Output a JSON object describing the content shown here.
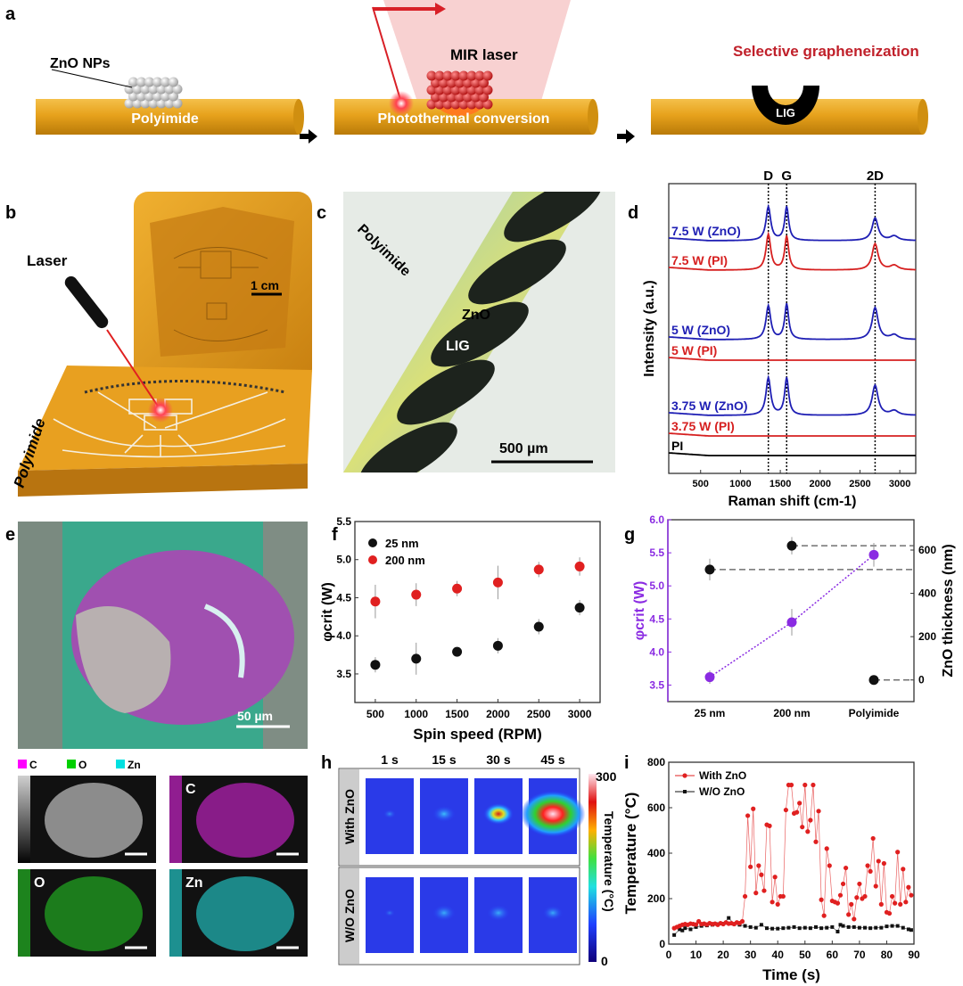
{
  "panel_labels": {
    "a": "a",
    "b": "b",
    "c": "c",
    "d": "d",
    "e": "e",
    "f": "f",
    "g": "g",
    "h": "h",
    "i": "i"
  },
  "panel_a": {
    "zno_nps": "ZnO NPs",
    "polyimide": "Polyimide",
    "mir_laser": "MIR laser",
    "photothermal": "Photothermal conversion",
    "selective": "Selective grapheneization",
    "lig": "LIG",
    "colors": {
      "substrate": "#e7a21c",
      "laser": "#d81f26",
      "title_red": "#c0202a"
    }
  },
  "panel_b": {
    "laser": "Laser",
    "scale": "1 cm",
    "polyimide": "Polyimide"
  },
  "panel_c": {
    "polyimide": "Polyimide",
    "zno": "ZnO",
    "lig": "LIG",
    "scale": "500 µm"
  },
  "panel_e": {
    "scale": "50 µm",
    "legend": [
      "C",
      "O",
      "Zn"
    ],
    "legend_colors": [
      "#ff00ff",
      "#00d000",
      "#00e0e0"
    ],
    "maps": [
      "C",
      "O",
      "Zn"
    ]
  },
  "panel_h": {
    "times": [
      "1 s",
      "15 s",
      "30 s",
      "45 s"
    ],
    "rows": [
      "With ZnO",
      "W/O ZnO"
    ],
    "colorbar": {
      "label": "Temperature (°C)",
      "max": "300",
      "min": "0"
    }
  },
  "chart_data": [
    {
      "id": "d",
      "type": "line",
      "xlabel": "Raman shift (cm-1)",
      "ylabel": "Intensity (a.u.)",
      "xlim": [
        100,
        3200
      ],
      "xticks": [
        500,
        1000,
        1500,
        2000,
        2500,
        3000
      ],
      "peak_markers": [
        {
          "label": "D",
          "x": 1350
        },
        {
          "label": "G",
          "x": 1580
        },
        {
          "label": "2D",
          "x": 2690
        }
      ],
      "series": [
        {
          "name": "7.5 W (ZnO)",
          "color": "#1f1fb4",
          "peaks": [
            0.9,
            0.9,
            0.6
          ]
        },
        {
          "name": "7.5 W (PI)",
          "color": "#d62020",
          "peaks": [
            0.95,
            0.9,
            0.7
          ]
        },
        {
          "name": "5 W (ZnO)",
          "color": "#1f1fb4",
          "peaks": [
            0.9,
            0.95,
            0.85
          ]
        },
        {
          "name": "5 W (PI)",
          "color": "#d62020",
          "peaks": [
            0,
            0,
            0
          ]
        },
        {
          "name": "3.75 W (ZnO)",
          "color": "#1f1fb4",
          "peaks": [
            1.0,
            1.0,
            0.8
          ]
        },
        {
          "name": "3.75 W (PI)",
          "color": "#d62020",
          "peaks": [
            0,
            0,
            0
          ]
        },
        {
          "name": "PI",
          "color": "#000000",
          "peaks": [
            0,
            0,
            0
          ]
        }
      ]
    },
    {
      "id": "f",
      "type": "scatter",
      "xlabel": "Spin speed (RPM)",
      "ylabel": "φcrit (W)",
      "xlim": [
        250,
        3250
      ],
      "ylim": [
        3.125,
        5.5
      ],
      "x": [
        500,
        1000,
        1500,
        2000,
        2500,
        3000
      ],
      "yticks": [
        3.5,
        4.0,
        4.5,
        5.0,
        5.5
      ],
      "legend": "top-left",
      "series": [
        {
          "name": "25 nm",
          "color": "#111111",
          "values": [
            3.62,
            3.7,
            3.79,
            3.87,
            4.12,
            4.37
          ],
          "errors": [
            0.1,
            0.21,
            0.03,
            0.1,
            0.1,
            0.1
          ]
        },
        {
          "name": "200 nm",
          "color": "#e02020",
          "values": [
            4.45,
            4.54,
            4.62,
            4.7,
            4.87,
            4.91
          ],
          "errors": [
            0.22,
            0.15,
            0.1,
            0.22,
            0.1,
            0.12
          ]
        }
      ]
    },
    {
      "id": "g",
      "type": "scatter",
      "categories": [
        "25 nm",
        "200 nm",
        "Polyimide"
      ],
      "ylabel_left": "φcrit (W)",
      "ylabel_right": "ZnO thickness (nm)",
      "ylim_left": [
        3.25,
        6.0
      ],
      "yticks_left": [
        3.5,
        4.0,
        4.5,
        5.0,
        5.5,
        6.0
      ],
      "ylim_right": [
        -100,
        740
      ],
      "yticks_right": [
        0,
        200,
        400,
        600
      ],
      "left_color": "#8a2be2",
      "series": [
        {
          "axis": "left",
          "color": "#8a2be2",
          "values": [
            3.62,
            4.45,
            5.47
          ],
          "errors": [
            0.1,
            0.2,
            0.18
          ]
        },
        {
          "axis": "right",
          "color": "#111111",
          "values": [
            510,
            620,
            0
          ],
          "errors": [
            50,
            40,
            0
          ]
        }
      ]
    },
    {
      "id": "i",
      "type": "line",
      "xlabel": "Time (s)",
      "ylabel": "Temperature (°C)",
      "xlim": [
        0,
        90
      ],
      "ylim": [
        0,
        800
      ],
      "xticks": [
        0,
        10,
        20,
        30,
        40,
        50,
        60,
        70,
        80,
        90
      ],
      "yticks": [
        0,
        200,
        400,
        600,
        800
      ],
      "legend": "top-left",
      "series": [
        {
          "name": "With ZnO",
          "color": "#e02020",
          "x": [
            2,
            3,
            4,
            5,
            6,
            7,
            8,
            9,
            10,
            11,
            12,
            13,
            14,
            15,
            16,
            17,
            18,
            19,
            20,
            21,
            22,
            23,
            24,
            25,
            26,
            27,
            28,
            29,
            30,
            31,
            32,
            33,
            34,
            35,
            36,
            37,
            38,
            39,
            40,
            41,
            42,
            43,
            44,
            45,
            46,
            47,
            48,
            49,
            50,
            51,
            52,
            53,
            54,
            55,
            56,
            57,
            58,
            59,
            60,
            61,
            62,
            63,
            64,
            65,
            66,
            67,
            68,
            69,
            70,
            71,
            72,
            73,
            74,
            75,
            76,
            77,
            78,
            79,
            80,
            81,
            82,
            83,
            84,
            85,
            86,
            87,
            88,
            89
          ],
          "y": [
            70,
            75,
            80,
            85,
            88,
            85,
            90,
            88,
            86,
            100,
            88,
            90,
            86,
            92,
            88,
            90,
            85,
            92,
            88,
            95,
            90,
            92,
            88,
            95,
            92,
            100,
            210,
            565,
            340,
            595,
            225,
            345,
            305,
            235,
            525,
            520,
            185,
            295,
            175,
            210,
            210,
            590,
            700,
            700,
            575,
            580,
            620,
            515,
            700,
            495,
            545,
            700,
            450,
            585,
            195,
            125,
            420,
            345,
            190,
            185,
            180,
            215,
            265,
            335,
            130,
            175,
            110,
            205,
            265,
            200,
            210,
            345,
            320,
            465,
            255,
            365,
            175,
            355,
            140,
            135,
            210,
            180,
            405,
            175,
            330,
            185,
            250,
            215
          ]
        },
        {
          "name": "W/O ZnO",
          "color": "#111111",
          "x": [
            2,
            4,
            5,
            6,
            8,
            10,
            12,
            14,
            16,
            18,
            20,
            22,
            24,
            26,
            28,
            30,
            32,
            34,
            36,
            38,
            40,
            42,
            44,
            46,
            48,
            50,
            52,
            54,
            56,
            58,
            60,
            62,
            63,
            64,
            66,
            68,
            70,
            72,
            74,
            76,
            78,
            80,
            82,
            84,
            86,
            88,
            89
          ],
          "y": [
            40,
            65,
            60,
            70,
            65,
            75,
            80,
            82,
            85,
            88,
            90,
            115,
            88,
            85,
            80,
            75,
            72,
            85,
            70,
            68,
            68,
            70,
            72,
            75,
            70,
            72,
            70,
            75,
            70,
            72,
            75,
            55,
            85,
            80,
            75,
            75,
            72,
            72,
            70,
            72,
            72,
            78,
            80,
            80,
            72,
            65,
            62
          ]
        }
      ]
    }
  ]
}
